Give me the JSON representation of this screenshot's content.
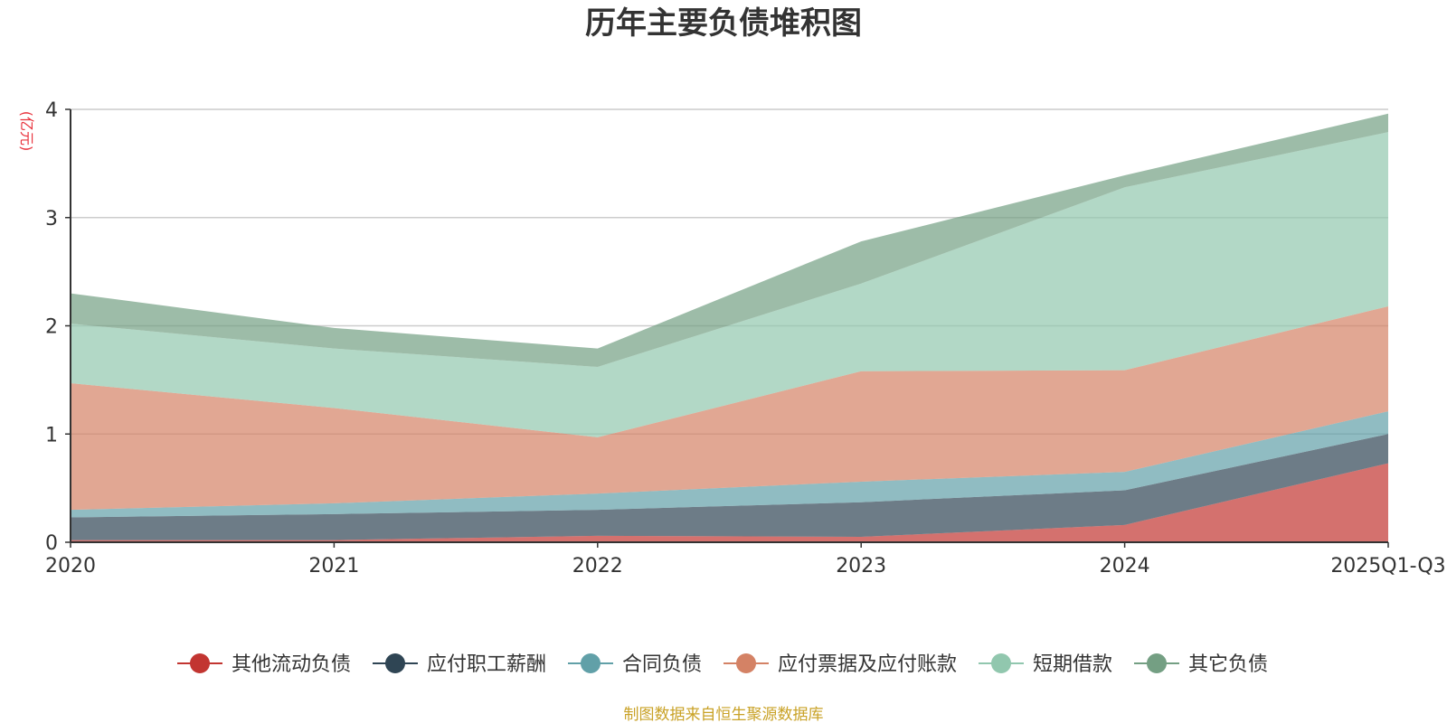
{
  "chart_data": {
    "type": "area",
    "stacked": true,
    "title": "历年主要负债堆积图",
    "ylabel": "(亿元)",
    "xlabel": "",
    "ylim": [
      0,
      4
    ],
    "yticks": [
      0,
      1,
      2,
      3,
      4
    ],
    "grid": true,
    "legend_position": "bottom",
    "categories": [
      "2020",
      "2021",
      "2022",
      "2023",
      "2024",
      "2025Q1-Q3"
    ],
    "series": [
      {
        "name": "其他流动负债",
        "color": "#c23531",
        "values": [
          0.02,
          0.02,
          0.06,
          0.05,
          0.16,
          0.73
        ]
      },
      {
        "name": "应付职工薪酬",
        "color": "#2f4554",
        "values": [
          0.21,
          0.24,
          0.24,
          0.32,
          0.32,
          0.27
        ]
      },
      {
        "name": "合同负债",
        "color": "#61a0a8",
        "values": [
          0.07,
          0.1,
          0.15,
          0.19,
          0.17,
          0.21
        ]
      },
      {
        "name": "应付票据及应付账款",
        "color": "#d48265",
        "values": [
          1.17,
          0.88,
          0.52,
          1.02,
          0.94,
          0.97
        ]
      },
      {
        "name": "短期借款",
        "color": "#91c7ae",
        "values": [
          0.55,
          0.55,
          0.65,
          0.81,
          1.69,
          1.61
        ]
      },
      {
        "name": "其它负债",
        "color": "#749f83",
        "values": [
          0.28,
          0.19,
          0.17,
          0.39,
          0.11,
          0.17
        ]
      }
    ],
    "source": "制图数据来自恒生聚源数据库"
  }
}
